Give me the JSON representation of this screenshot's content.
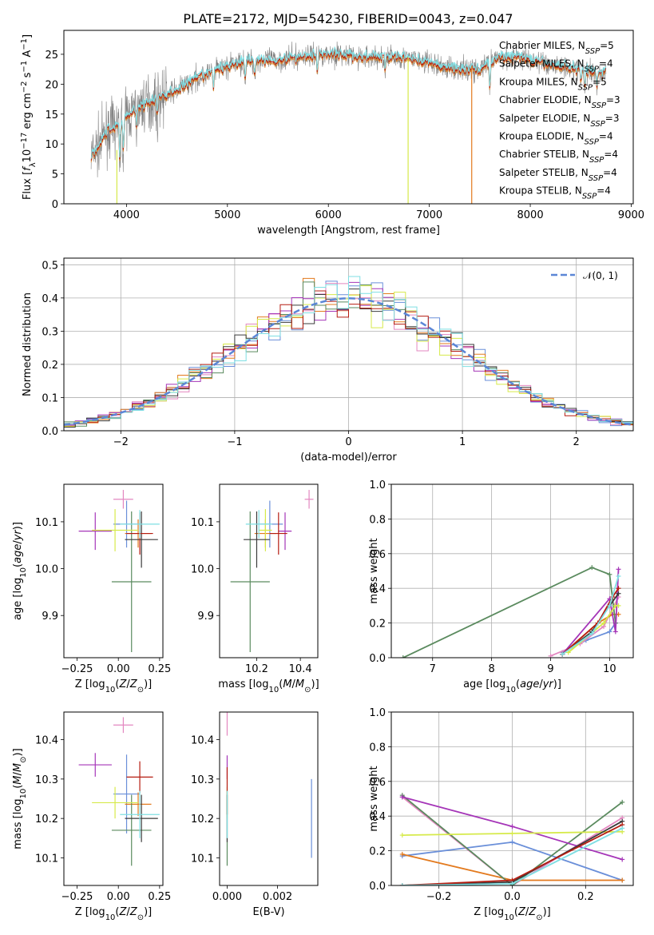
{
  "title": "PLATE=2172, MJD=54230, FIBERID=0043, z=0.047",
  "colors": {
    "Chabrier MILES": "#6a8fd9",
    "Salpeter MILES": "#e387c0",
    "Kroupa MILES": "#e37a1e",
    "Chabrier ELODIE": "#5a8a5e",
    "Salpeter ELODIE": "#a535b8",
    "Kroupa ELODIE": "#d6ea4a",
    "Chabrier STELIB": "#3a3a3a",
    "Salpeter STELIB": "#b51c10",
    "Kroupa STELIB": "#7fdfe3"
  },
  "chart_data": [
    {
      "type": "line",
      "xlabel": "wavelength [Angstrom, rest frame]",
      "ylabel": "Flux [f_λ10^-17 erg cm^-2 s^-1 A^-1]",
      "xlim": [
        3380,
        9020
      ],
      "ylim": [
        0,
        29
      ],
      "xticks": [
        "4000",
        "5000",
        "6000",
        "7000",
        "8000",
        "9000"
      ],
      "yticks": [
        "0",
        "5",
        "10",
        "15",
        "20",
        "25"
      ],
      "legend": [
        "Chabrier MILES, N_SSP=5",
        "Salpeter MILES, N_SSP=4",
        "Kroupa MILES, N_SSP=5",
        "Chabrier ELODIE, N_SSP=3",
        "Salpeter ELODIE, N_SSP=3",
        "Kroupa ELODIE, N_SSP=4",
        "Chabrier STELIB, N_SSP=4",
        "Salpeter STELIB, N_SSP=4",
        "Kroupa STELIB, N_SSP=4"
      ],
      "legend_location": "right",
      "continuum": {
        "x": [
          3650,
          3720,
          3800,
          3900,
          4000,
          4100,
          4300,
          4500,
          4700,
          4900,
          5100,
          5300,
          5500,
          5700,
          5900,
          6100,
          6300,
          6500,
          6700,
          6900,
          7100,
          7300,
          7500,
          7700,
          7900,
          8100,
          8300,
          8500,
          8700
        ],
        "y": [
          8,
          9.5,
          12,
          13,
          14.5,
          16,
          17.5,
          19,
          21,
          22.5,
          23.5,
          24,
          24,
          24.5,
          25,
          25,
          24.5,
          24.5,
          24.5,
          24,
          23,
          22.5,
          22.5,
          24.5,
          24.5,
          23.5,
          23,
          22.5,
          22
        ]
      }
    },
    {
      "type": "bar",
      "xlabel": "(data-model)/error",
      "ylabel": "Normed distribution",
      "xlim": [
        -2.5,
        2.5
      ],
      "ylim": [
        0,
        0.52
      ],
      "xticks": [
        "−2",
        "−1",
        "0",
        "1",
        "2"
      ],
      "yticks": [
        "0.0",
        "0.1",
        "0.2",
        "0.3",
        "0.4",
        "0.5"
      ],
      "bin_width": 0.1,
      "legend": [
        "𝒩(0, 1)"
      ],
      "gaussian": {
        "mu": 0,
        "sigma": 1
      }
    },
    {
      "type": "scatter",
      "xlabel": "Z [log10(Z/Z⊙)]",
      "ylabel": "age [log10(age/yr)]",
      "xlim": [
        -0.33,
        0.27
      ],
      "ylim": [
        9.81,
        10.18
      ],
      "xticks": [
        "−0.25",
        "0.00",
        "0.25"
      ],
      "yticks": [
        "9.9",
        "10.0",
        "10.1"
      ],
      "points": [
        {
          "m": "Chabrier MILES",
          "x": 0.05,
          "y": 10.095,
          "xe": 0.08,
          "ye": 0.05
        },
        {
          "m": "Salpeter MILES",
          "x": 0.03,
          "y": 10.148,
          "xe": 0.06,
          "ye": 0.02
        },
        {
          "m": "Kroupa MILES",
          "x": 0.12,
          "y": 10.075,
          "xe": 0.08,
          "ye": 0.03
        },
        {
          "m": "Chabrier ELODIE",
          "x": 0.08,
          "y": 9.972,
          "xe": 0.12,
          "ye": 0.15
        },
        {
          "m": "Salpeter ELODIE",
          "x": -0.14,
          "y": 10.08,
          "xe": 0.1,
          "ye": 0.04
        },
        {
          "m": "Kroupa ELODIE",
          "x": -0.02,
          "y": 10.082,
          "xe": 0.14,
          "ye": 0.045
        },
        {
          "m": "Chabrier STELIB",
          "x": 0.14,
          "y": 10.062,
          "xe": 0.1,
          "ye": 0.06
        },
        {
          "m": "Salpeter STELIB",
          "x": 0.13,
          "y": 10.075,
          "xe": 0.08,
          "ye": 0.045
        },
        {
          "m": "Kroupa STELIB",
          "x": 0.13,
          "y": 10.095,
          "xe": 0.12,
          "ye": 0.03
        }
      ]
    },
    {
      "type": "scatter",
      "xlabel": "mass [log10(M/M⊙)]",
      "ylabel": "",
      "xlim": [
        10.03,
        10.48
      ],
      "ylim": [
        9.81,
        10.18
      ],
      "xticks": [
        "10.2",
        "10.4"
      ],
      "yticks": [
        "9.9",
        "10.0",
        "10.1"
      ],
      "points": [
        {
          "m": "Chabrier MILES",
          "x": 10.26,
          "y": 10.095,
          "xe": 0.06,
          "ye": 0.05
        },
        {
          "m": "Salpeter MILES",
          "x": 10.44,
          "y": 10.148,
          "xe": 0.02,
          "ye": 0.02
        },
        {
          "m": "Kroupa MILES",
          "x": 10.24,
          "y": 10.075,
          "xe": 0.05,
          "ye": 0.03
        },
        {
          "m": "Chabrier ELODIE",
          "x": 10.17,
          "y": 9.972,
          "xe": 0.09,
          "ye": 0.15
        },
        {
          "m": "Salpeter ELODIE",
          "x": 10.33,
          "y": 10.08,
          "xe": 0.03,
          "ye": 0.04
        },
        {
          "m": "Kroupa ELODIE",
          "x": 10.24,
          "y": 10.082,
          "xe": 0.03,
          "ye": 0.045
        },
        {
          "m": "Chabrier STELIB",
          "x": 10.2,
          "y": 10.062,
          "xe": 0.06,
          "ye": 0.06
        },
        {
          "m": "Salpeter STELIB",
          "x": 10.3,
          "y": 10.075,
          "xe": 0.04,
          "ye": 0.045
        },
        {
          "m": "Kroupa STELIB",
          "x": 10.21,
          "y": 10.095,
          "xe": 0.06,
          "ye": 0.03
        }
      ]
    },
    {
      "type": "line",
      "xlabel": "age [log10(age/yr)]",
      "ylabel": "mass weight",
      "xlim": [
        6.3,
        10.4
      ],
      "ylim": [
        0,
        1.0
      ],
      "xticks": [
        "7",
        "8",
        "9",
        "10"
      ],
      "yticks": [
        "0.0",
        "0.2",
        "0.4",
        "0.6",
        "0.8",
        "1.0"
      ],
      "series": [
        {
          "m": "Chabrier MILES",
          "x": [
            9.2,
            9.6,
            10.0,
            10.1
          ],
          "y": [
            0.03,
            0.1,
            0.15,
            0.2
          ]
        },
        {
          "m": "Salpeter MILES",
          "x": [
            9.0,
            9.5,
            9.9,
            10.15
          ],
          "y": [
            0.01,
            0.08,
            0.18,
            0.35
          ]
        },
        {
          "m": "Kroupa MILES",
          "x": [
            9.2,
            9.8,
            10.05,
            10.15
          ],
          "y": [
            0.02,
            0.2,
            0.25,
            0.25
          ]
        },
        {
          "m": "Chabrier ELODIE",
          "x": [
            6.5,
            9.7,
            10.0,
            10.1
          ],
          "y": [
            0.0,
            0.52,
            0.48,
            0.2
          ]
        },
        {
          "m": "Salpeter ELODIE",
          "x": [
            9.2,
            10.0,
            10.1,
            10.15
          ],
          "y": [
            0.02,
            0.34,
            0.15,
            0.51
          ]
        },
        {
          "m": "Kroupa ELODIE",
          "x": [
            9.3,
            9.9,
            10.1,
            10.15
          ],
          "y": [
            0.03,
            0.2,
            0.3,
            0.3
          ]
        },
        {
          "m": "Chabrier STELIB",
          "x": [
            9.2,
            9.7,
            10.0,
            10.15
          ],
          "y": [
            0.02,
            0.15,
            0.3,
            0.37
          ]
        },
        {
          "m": "Salpeter STELIB",
          "x": [
            9.2,
            9.8,
            10.05,
            10.15
          ],
          "y": [
            0.02,
            0.2,
            0.35,
            0.4
          ]
        },
        {
          "m": "Kroupa STELIB",
          "x": [
            9.2,
            9.7,
            10.0,
            10.15
          ],
          "y": [
            0.02,
            0.14,
            0.3,
            0.47
          ]
        }
      ]
    },
    {
      "type": "scatter",
      "xlabel": "Z [log10(Z/Z⊙)]",
      "ylabel": "mass [log10(M/M⊙)]",
      "xlim": [
        -0.33,
        0.27
      ],
      "ylim": [
        10.03,
        10.47
      ],
      "xticks": [
        "−0.25",
        "0.00",
        "0.25"
      ],
      "yticks": [
        "10.1",
        "10.2",
        "10.3",
        "10.4"
      ],
      "points": [
        {
          "m": "Chabrier MILES",
          "x": 0.05,
          "y": 10.262,
          "xe": 0.08,
          "ye": 0.1
        },
        {
          "m": "Salpeter MILES",
          "x": 0.03,
          "y": 10.437,
          "xe": 0.06,
          "ye": 0.02
        },
        {
          "m": "Kroupa MILES",
          "x": 0.12,
          "y": 10.236,
          "xe": 0.08,
          "ye": 0.03
        },
        {
          "m": "Chabrier ELODIE",
          "x": 0.08,
          "y": 10.17,
          "xe": 0.12,
          "ye": 0.09
        },
        {
          "m": "Salpeter ELODIE",
          "x": -0.14,
          "y": 10.336,
          "xe": 0.1,
          "ye": 0.03
        },
        {
          "m": "Kroupa ELODIE",
          "x": -0.02,
          "y": 10.24,
          "xe": 0.14,
          "ye": 0.04
        },
        {
          "m": "Chabrier STELIB",
          "x": 0.14,
          "y": 10.2,
          "xe": 0.1,
          "ye": 0.06
        },
        {
          "m": "Salpeter STELIB",
          "x": 0.13,
          "y": 10.305,
          "xe": 0.08,
          "ye": 0.04
        },
        {
          "m": "Kroupa STELIB",
          "x": 0.13,
          "y": 10.21,
          "xe": 0.12,
          "ye": 0.06
        }
      ]
    },
    {
      "type": "scatter",
      "xlabel": "E(B-V)",
      "ylabel": "",
      "xlim": [
        -0.0003,
        0.0036
      ],
      "ylim": [
        10.03,
        10.47
      ],
      "xticks": [
        "0.000",
        "0.002"
      ],
      "yticks": [
        "10.1",
        "10.2",
        "10.3",
        "10.4"
      ],
      "points": [
        {
          "m": "Chabrier MILES",
          "x": 0.00335,
          "y": 10.2,
          "xe": 0,
          "ye": 0.1
        },
        {
          "m": "Salpeter MILES",
          "x": 0.0,
          "y": 10.44,
          "xe": 0,
          "ye": 0.03
        },
        {
          "m": "Kroupa MILES",
          "x": 0.0,
          "y": 10.24,
          "xe": 0,
          "ye": 0.03
        },
        {
          "m": "Chabrier ELODIE",
          "x": 0.0,
          "y": 10.17,
          "xe": 0,
          "ye": 0.09
        },
        {
          "m": "Salpeter ELODIE",
          "x": 0.0,
          "y": 10.33,
          "xe": 0,
          "ye": 0.03
        },
        {
          "m": "Kroupa ELODIE",
          "x": 0.0,
          "y": 10.24,
          "xe": 0,
          "ye": 0.04
        },
        {
          "m": "Chabrier STELIB",
          "x": 0.0,
          "y": 10.2,
          "xe": 0,
          "ye": 0.06
        },
        {
          "m": "Salpeter STELIB",
          "x": 0.0,
          "y": 10.27,
          "xe": 0,
          "ye": 0.06
        },
        {
          "m": "Kroupa STELIB",
          "x": 0.0,
          "y": 10.21,
          "xe": 0,
          "ye": 0.06
        }
      ]
    },
    {
      "type": "line",
      "xlabel": "Z [log10(Z/Z⊙)]",
      "ylabel": "mass weight",
      "xlim": [
        -0.33,
        0.33
      ],
      "ylim": [
        0,
        1.0
      ],
      "xticks": [
        "−0.2",
        "0.0",
        "0.2"
      ],
      "yticks": [
        "0.0",
        "0.2",
        "0.4",
        "0.6",
        "0.8",
        "1.0"
      ],
      "series": [
        {
          "m": "Chabrier MILES",
          "x": [
            -0.3,
            0.0,
            0.3
          ],
          "y": [
            0.17,
            0.25,
            0.03
          ]
        },
        {
          "m": "Salpeter MILES",
          "x": [
            -0.3,
            0.0,
            0.3
          ],
          "y": [
            0.51,
            0.0,
            0.39
          ]
        },
        {
          "m": "Kroupa MILES",
          "x": [
            -0.3,
            0.0,
            0.3
          ],
          "y": [
            0.18,
            0.03,
            0.03
          ]
        },
        {
          "m": "Chabrier ELODIE",
          "x": [
            -0.3,
            0.0,
            0.3
          ],
          "y": [
            0.52,
            0.0,
            0.48
          ]
        },
        {
          "m": "Salpeter ELODIE",
          "x": [
            -0.3,
            0.0,
            0.3
          ],
          "y": [
            0.51,
            0.34,
            0.15
          ]
        },
        {
          "m": "Kroupa ELODIE",
          "x": [
            -0.3,
            0.0,
            0.3
          ],
          "y": [
            0.29,
            0.3,
            0.31
          ]
        },
        {
          "m": "Chabrier STELIB",
          "x": [
            -0.3,
            0.0,
            0.3
          ],
          "y": [
            0.0,
            0.02,
            0.37
          ]
        },
        {
          "m": "Salpeter STELIB",
          "x": [
            -0.3,
            0.0,
            0.3
          ],
          "y": [
            0.0,
            0.03,
            0.35
          ]
        },
        {
          "m": "Kroupa STELIB",
          "x": [
            -0.3,
            0.0,
            0.3
          ],
          "y": [
            0.0,
            0.01,
            0.33
          ]
        }
      ]
    }
  ]
}
